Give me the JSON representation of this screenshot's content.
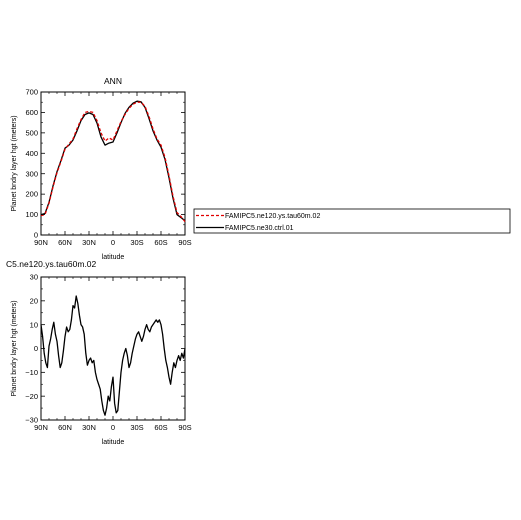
{
  "chart_data": [
    {
      "type": "line",
      "title": "ANN",
      "xlabel": "latitude",
      "ylabel": "Planet bndry layer hgt (meters)",
      "xlim": [
        -90,
        90
      ],
      "ylim": [
        0,
        700
      ],
      "x_ticks": [
        -90,
        -60,
        -30,
        0,
        30,
        60,
        90
      ],
      "x_tick_labels": [
        "90N",
        "60N",
        "30N",
        "0",
        "30S",
        "60S",
        "90S"
      ],
      "y_ticks": [
        0,
        100,
        200,
        300,
        400,
        500,
        600,
        700
      ],
      "y_tick_labels": [
        "0",
        "100",
        "200",
        "300",
        "400",
        "500",
        "600",
        "700"
      ],
      "legend_position": "right",
      "series": [
        {
          "name": "FAMIPC5.ne120.ys.tau60m.02",
          "color": "#e00000",
          "dash": true,
          "x": [
            -90,
            -85,
            -80,
            -75,
            -70,
            -65,
            -60,
            -55,
            -50,
            -45,
            -40,
            -35,
            -30,
            -25,
            -20,
            -15,
            -10,
            -5,
            0,
            5,
            10,
            15,
            20,
            25,
            30,
            35,
            40,
            45,
            50,
            55,
            60,
            65,
            70,
            75,
            80,
            85,
            90
          ],
          "y": [
            95,
            100,
            155,
            235,
            305,
            360,
            420,
            445,
            470,
            520,
            565,
            600,
            605,
            600,
            560,
            500,
            460,
            475,
            465,
            510,
            555,
            590,
            620,
            640,
            650,
            650,
            630,
            580,
            520,
            470,
            440,
            380,
            290,
            190,
            110,
            90,
            65
          ]
        },
        {
          "name": "FAMIPC5.ne30.ctrl.01",
          "color": "#000000",
          "dash": false,
          "x": [
            -90,
            -85,
            -80,
            -75,
            -70,
            -65,
            -60,
            -55,
            -50,
            -45,
            -40,
            -35,
            -30,
            -25,
            -20,
            -15,
            -10,
            -5,
            0,
            5,
            10,
            15,
            20,
            25,
            30,
            35,
            40,
            45,
            50,
            55,
            60,
            65,
            70,
            75,
            80,
            85,
            90
          ],
          "y": [
            100,
            105,
            160,
            240,
            310,
            365,
            425,
            440,
            465,
            510,
            560,
            590,
            598,
            590,
            548,
            480,
            440,
            450,
            455,
            500,
            550,
            595,
            625,
            645,
            655,
            652,
            625,
            570,
            510,
            465,
            430,
            370,
            280,
            180,
            100,
            85,
            70
          ]
        }
      ]
    },
    {
      "type": "line",
      "title": "C5.ne120.ys.tau60m.02",
      "xlabel": "latitude",
      "ylabel": "Planet bndry layer hgt (meters)",
      "xlim": [
        -90,
        90
      ],
      "ylim": [
        -30,
        30
      ],
      "x_ticks": [
        -90,
        -60,
        -30,
        0,
        30,
        60,
        90
      ],
      "x_tick_labels": [
        "90N",
        "60N",
        "30N",
        "0",
        "30S",
        "60S",
        "90S"
      ],
      "y_ticks": [
        -30,
        -20,
        -10,
        0,
        10,
        20,
        30
      ],
      "y_tick_labels": [
        "−30",
        "−20",
        "−10",
        "0",
        "10",
        "20",
        "30"
      ],
      "series": [
        {
          "color": "#000000",
          "x": [
            -90,
            -88,
            -86,
            -84,
            -82,
            -80,
            -78,
            -76,
            -74,
            -72,
            -70,
            -68,
            -66,
            -64,
            -62,
            -60,
            -58,
            -56,
            -54,
            -52,
            -50,
            -48,
            -46,
            -44,
            -42,
            -40,
            -38,
            -36,
            -34,
            -32,
            -30,
            -28,
            -26,
            -24,
            -22,
            -20,
            -18,
            -16,
            -14,
            -12,
            -10,
            -8,
            -6,
            -4,
            -2,
            0,
            2,
            4,
            6,
            8,
            10,
            12,
            14,
            16,
            18,
            20,
            22,
            24,
            26,
            28,
            30,
            32,
            34,
            36,
            38,
            40,
            42,
            44,
            46,
            48,
            50,
            52,
            54,
            56,
            58,
            60,
            62,
            64,
            66,
            68,
            70,
            72,
            74,
            76,
            78,
            80,
            82,
            84,
            86,
            88,
            90
          ],
          "y": [
            10,
            5,
            -2,
            -6,
            -8,
            1,
            4,
            8,
            11,
            6,
            3,
            -3,
            -8,
            -6,
            -1,
            5,
            9,
            7,
            8,
            12,
            18,
            17,
            22,
            19,
            14,
            10,
            9,
            6,
            -2,
            -7,
            -5,
            -4,
            -6,
            -5,
            -10,
            -13,
            -15,
            -17,
            -22,
            -26,
            -28,
            -25,
            -20,
            -22,
            -16,
            -12,
            -23,
            -27,
            -26,
            -18,
            -10,
            -5,
            -2,
            0,
            -3,
            -8,
            -6,
            -2,
            1,
            4,
            6,
            7,
            5,
            3,
            5,
            8,
            10,
            8,
            7,
            9,
            10,
            11,
            12,
            11,
            12,
            10,
            6,
            0,
            -5,
            -8,
            -12,
            -15,
            -10,
            -6,
            -8,
            -5,
            -3,
            -5,
            -2,
            -4,
            0
          ]
        }
      ]
    }
  ],
  "legend": {
    "entries": [
      "FAMIPC5.ne120.ys.tau60m.02",
      "FAMIPC5.ne30.ctrl.01"
    ]
  }
}
